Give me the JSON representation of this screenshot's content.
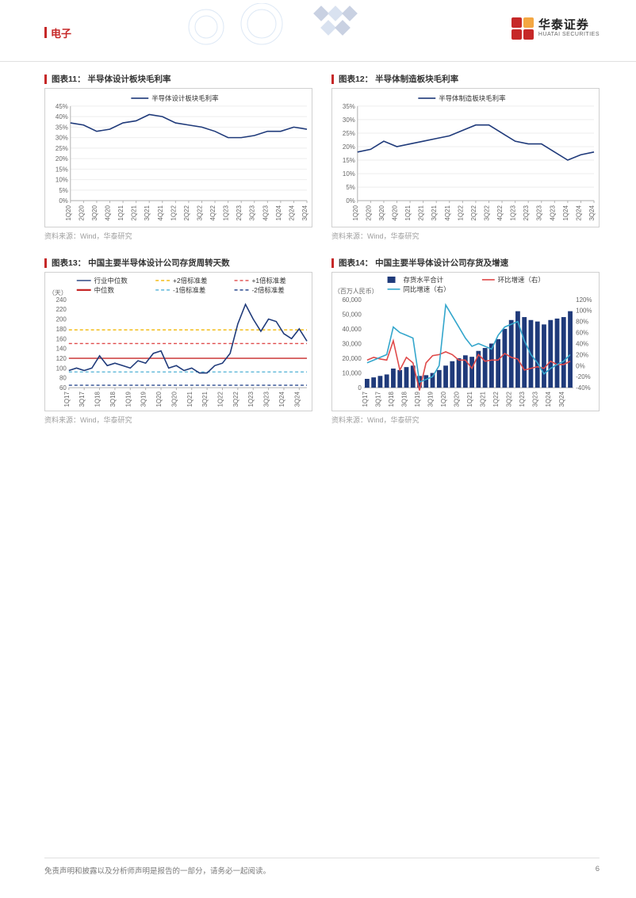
{
  "header": {
    "section_label": "电子",
    "logo_cn": "华泰证券",
    "logo_en": "HUATAI SECURITIES"
  },
  "shared": {
    "source_label": "资料来源：Wind，华泰研究",
    "quarters_short": [
      "1Q20",
      "2Q20",
      "3Q20",
      "4Q20",
      "1Q21",
      "2Q21",
      "3Q21",
      "4Q21",
      "1Q22",
      "2Q22",
      "3Q22",
      "4Q22",
      "1Q23",
      "2Q23",
      "3Q23",
      "4Q23",
      "1Q24",
      "2Q24",
      "3Q24"
    ],
    "quarters_long": [
      "1Q17",
      "3Q17",
      "1Q18",
      "3Q18",
      "1Q19",
      "3Q19",
      "1Q20",
      "3Q20",
      "1Q21",
      "3Q21",
      "1Q22",
      "3Q22",
      "1Q23",
      "3Q23",
      "1Q24",
      "3Q24"
    ],
    "axis_color": "#b0b0b0",
    "grid_color": "#eeeeee",
    "text_color": "#666666"
  },
  "chart11": {
    "title": "图表11： 半导体设计板块毛利率",
    "type": "line",
    "legend": "半导体设计板块毛利率",
    "line_color": "#1f3a7a",
    "y_min": 0,
    "y_max": 0.45,
    "y_step": 0.05,
    "y_labels": [
      "0%",
      "5%",
      "10%",
      "15%",
      "20%",
      "25%",
      "30%",
      "35%",
      "40%",
      "45%"
    ],
    "values": [
      0.37,
      0.36,
      0.33,
      0.34,
      0.37,
      0.38,
      0.41,
      0.4,
      0.37,
      0.36,
      0.35,
      0.33,
      0.3,
      0.3,
      0.31,
      0.33,
      0.33,
      0.35,
      0.34
    ]
  },
  "chart12": {
    "title": "图表12： 半导体制造板块毛利率",
    "type": "line",
    "legend": "半导体制造板块毛利率",
    "line_color": "#1f3a7a",
    "y_min": 0,
    "y_max": 0.35,
    "y_step": 0.05,
    "y_labels": [
      "0%",
      "5%",
      "10%",
      "15%",
      "20%",
      "25%",
      "30%",
      "35%"
    ],
    "values": [
      0.18,
      0.19,
      0.22,
      0.2,
      0.21,
      0.22,
      0.23,
      0.24,
      0.26,
      0.28,
      0.28,
      0.25,
      0.22,
      0.21,
      0.21,
      0.18,
      0.15,
      0.17,
      0.18
    ]
  },
  "chart13": {
    "title": "图表13： 中国主要半导体设计公司存货周转天数",
    "type": "line",
    "y_unit": "（天）",
    "y_min": 60,
    "y_max": 240,
    "y_step": 20,
    "y_labels": [
      "60",
      "80",
      "100",
      "120",
      "140",
      "160",
      "180",
      "200",
      "220",
      "240"
    ],
    "n_points": 32,
    "x_labels": [
      "1Q17",
      "3Q17",
      "1Q18",
      "3Q18",
      "1Q19",
      "3Q19",
      "1Q20",
      "3Q20",
      "1Q21",
      "3Q21",
      "1Q22",
      "3Q22",
      "1Q23",
      "3Q23",
      "1Q24",
      "3Q24"
    ],
    "series": {
      "median_line": {
        "label": "行业中位数",
        "color": "#1f3a7a",
        "dash": "",
        "values": [
          95,
          100,
          95,
          100,
          125,
          105,
          110,
          105,
          100,
          115,
          110,
          130,
          135,
          100,
          105,
          95,
          100,
          90,
          90,
          105,
          110,
          130,
          190,
          230,
          200,
          175,
          200,
          195,
          170,
          160,
          180,
          155
        ]
      }
    },
    "ref_lines": {
      "plus2": {
        "label": "+2倍标准差",
        "color": "#f2b705",
        "dash": "4 3",
        "value": 178
      },
      "plus1": {
        "label": "+1倍标准差",
        "color": "#e04a4a",
        "dash": "4 3",
        "value": 150
      },
      "median": {
        "label": "中位数",
        "color": "#c62828",
        "dash": "",
        "value": 120
      },
      "minus1": {
        "label": "-1倍标准差",
        "color": "#5fb8d9",
        "dash": "4 3",
        "value": 92
      },
      "minus2": {
        "label": "-2倍标准差",
        "color": "#2b4a8f",
        "dash": "4 3",
        "value": 65
      }
    }
  },
  "chart14": {
    "title": "图表14： 中国主要半导体设计公司存货及增速",
    "type": "combo",
    "y_left_unit": "（百万人民币）",
    "y_left_min": 0,
    "y_left_max": 60000,
    "y_left_step": 10000,
    "y_left_labels": [
      "0",
      "10,000",
      "20,000",
      "30,000",
      "40,000",
      "50,000",
      "60,000"
    ],
    "y_right_min": -0.4,
    "y_right_max": 1.2,
    "y_right_step": 0.2,
    "y_right_labels": [
      "-40%",
      "-20%",
      "0%",
      "20%",
      "40%",
      "60%",
      "80%",
      "100%",
      "120%"
    ],
    "n_points": 32,
    "x_labels": [
      "1Q17",
      "3Q17",
      "1Q18",
      "3Q18",
      "1Q19",
      "3Q19",
      "1Q20",
      "3Q20",
      "1Q21",
      "3Q21",
      "1Q22",
      "3Q22",
      "1Q23",
      "3Q23",
      "1Q24",
      "3Q24"
    ],
    "bars": {
      "label": "存货水平合计",
      "color": "#1f3a7a",
      "values": [
        6000,
        7000,
        8000,
        9000,
        13000,
        12000,
        14000,
        15000,
        8000,
        8500,
        10000,
        12000,
        15000,
        18000,
        20000,
        22000,
        21000,
        25000,
        27000,
        30000,
        33000,
        40000,
        46000,
        52000,
        48000,
        46000,
        45000,
        43000,
        46000,
        47000,
        48000,
        52000
      ]
    },
    "lines": {
      "qoq": {
        "label": "环比增速（右）",
        "color": "#e04a4a",
        "values": [
          0.1,
          0.15,
          0.12,
          0.1,
          0.45,
          -0.08,
          0.15,
          0.05,
          -0.45,
          0.05,
          0.18,
          0.2,
          0.25,
          0.2,
          0.1,
          0.1,
          -0.05,
          0.2,
          0.08,
          0.1,
          0.1,
          0.22,
          0.15,
          0.12,
          -0.08,
          -0.05,
          -0.02,
          -0.05,
          0.08,
          0.02,
          0.02,
          0.08
        ]
      },
      "yoy": {
        "label": "同比增速（右）",
        "color": "#33a6cc",
        "values": [
          0.05,
          0.1,
          0.15,
          0.2,
          0.7,
          0.6,
          0.55,
          0.5,
          -0.3,
          -0.25,
          -0.2,
          0.0,
          1.1,
          0.9,
          0.7,
          0.5,
          0.35,
          0.4,
          0.35,
          0.3,
          0.55,
          0.7,
          0.75,
          0.8,
          0.45,
          0.2,
          0.05,
          -0.15,
          -0.05,
          0.02,
          0.08,
          0.2
        ]
      }
    }
  },
  "footer": {
    "disclaimer": "免责声明和披露以及分析师声明是报告的一部分，请务必一起阅读。",
    "page": "6"
  }
}
